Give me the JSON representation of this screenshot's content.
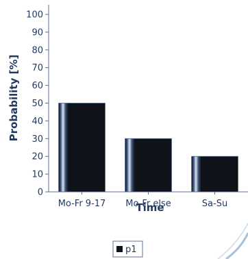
{
  "chart_data": {
    "type": "bar",
    "categories": [
      "Mo-Fr 9-17",
      "Mo-Fr else",
      "Sa-Su"
    ],
    "series": [
      {
        "name": "p1",
        "values": [
          50,
          30,
          20
        ]
      }
    ],
    "xlabel": "Time",
    "ylabel": "Probability [%]",
    "ylim": [
      0,
      100
    ],
    "yticks": [
      0,
      10,
      20,
      30,
      40,
      50,
      60,
      70,
      80,
      90,
      100
    ],
    "grid": false,
    "legend": "bottom-center",
    "colors": {
      "bar": "#0f1219",
      "bar_highlight": "#dbe6f4",
      "axis": "#5b7190",
      "text": "#233a5e",
      "decor": "#9fb6d6"
    }
  }
}
